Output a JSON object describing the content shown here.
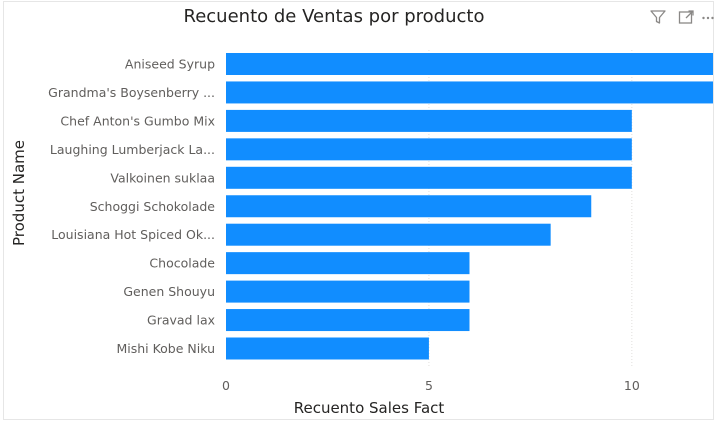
{
  "visual_header": {
    "icons": [
      "filter-icon",
      "focus-mode-icon",
      "more-options-icon"
    ],
    "icon_color": "#8a8886"
  },
  "chart_data": {
    "type": "bar",
    "orientation": "horizontal",
    "title": "Recuento de Ventas por producto",
    "xlabel": "Recuento Sales Fact",
    "ylabel": "Product Name",
    "categories": [
      "Aniseed Syrup",
      "Grandma's Boysenberry ...",
      "Chef Anton's Gumbo Mix",
      "Laughing Lumberjack La...",
      "Valkoinen suklaa",
      "Schoggi Schokolade",
      "Louisiana Hot Spiced Ok...",
      "Chocolade",
      "Genen Shouyu",
      "Gravad lax",
      "Mishi Kobe Niku"
    ],
    "values": [
      12,
      12,
      10,
      10,
      10,
      9,
      8,
      6,
      6,
      6,
      5
    ],
    "xlim": [
      0,
      12
    ],
    "xticks": [
      0,
      5,
      10
    ],
    "grid": true,
    "bar_color": "#118dff",
    "grid_color": "#e1dfdd"
  }
}
